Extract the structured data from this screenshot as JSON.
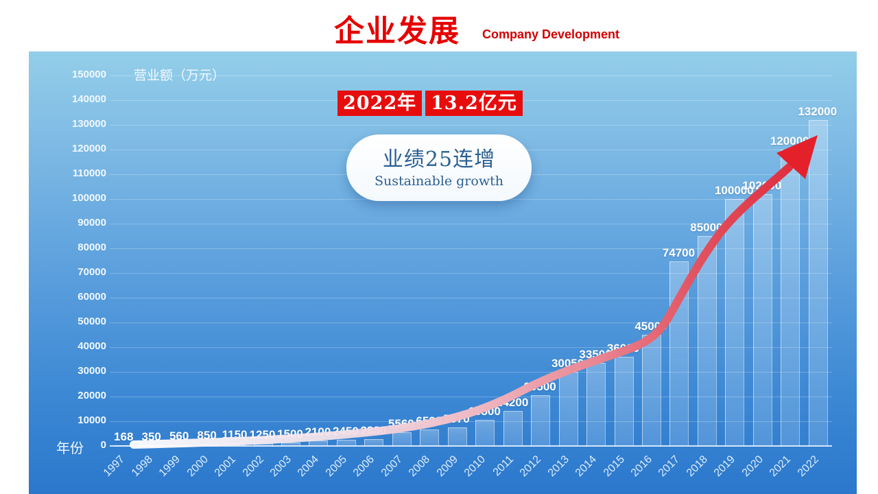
{
  "header": {
    "title": "企业发展",
    "subtitle": "Company Development"
  },
  "callouts": {
    "year_box": "2022年",
    "amount_box": "13.2亿元",
    "bubble_line1": "业绩25连增",
    "bubble_line2": "Sustainable growth"
  },
  "chart_data": {
    "type": "bar",
    "title": "企业发展 Company Development",
    "xlabel": "年份",
    "ylabel": "营业额（万元）",
    "ylim": [
      0,
      150000
    ],
    "ytick_step": 10000,
    "grid": true,
    "legend_position": "none",
    "categories": [
      "1997",
      "1998",
      "1999",
      "2000",
      "2001",
      "2002",
      "2003",
      "2004",
      "2005",
      "2006",
      "2007",
      "2008",
      "2009",
      "2010",
      "2011",
      "2012",
      "2013",
      "2014",
      "2015",
      "2016",
      "2017",
      "2018",
      "2019",
      "2020",
      "2021",
      "2022"
    ],
    "values": [
      168,
      350,
      560,
      850,
      1150,
      1250,
      1500,
      2100,
      2450,
      2880,
      5560,
      6530,
      7570,
      10500,
      14200,
      20500,
      30050,
      33500,
      36000,
      45000,
      74700,
      85000,
      100000,
      102000,
      120000,
      132000
    ],
    "annotation": "red growth-trend arrow sweeping from 1997 up to the 2022 bar"
  },
  "colors": {
    "title_red": "#e60000",
    "callout_red": "#e80d0d",
    "panel_top": "#93cee9",
    "panel_bottom": "#2b77cc",
    "bubble_text": "#2a5f92",
    "arrow_red": "#e4212b",
    "bar_fill": "rgba(235,246,255,0.28)"
  }
}
